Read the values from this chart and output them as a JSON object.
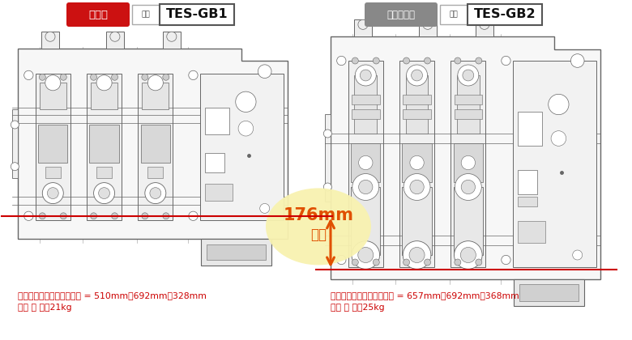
{
  "bg_color": "#ffffff",
  "left_label": "追加品",
  "left_label_bg": "#cc1111",
  "left_label_text_color": "#ffffff",
  "left_model_prefix": "形名",
  "left_model": "TES-GB1",
  "right_label": "従来同等品",
  "right_label_bg": "#888888",
  "right_label_text_color": "#ffffff",
  "right_model_prefix": "形名",
  "right_model": "TES-GB2",
  "reduction_number": "176mm",
  "reduction_text": "縮小",
  "reduction_bubble_color": "#f8f2b0",
  "reduction_number_color": "#e05000",
  "reduction_text_color": "#e05000",
  "arrow_color": "#e05000",
  "line_color": "#cc0000",
  "left_spec1": "【全体寸法】縦：横：奥行 = 510mm：692mm：328mm",
  "left_spec2": "【総 質 量】21kg",
  "right_spec1": "【全体寸法】縦：横：奥行 = 657mm：692mm：368mm",
  "right_spec2": "【総 質 量】25kg",
  "spec_color": "#cc0000",
  "lc": "#666666",
  "lc2": "#999999"
}
